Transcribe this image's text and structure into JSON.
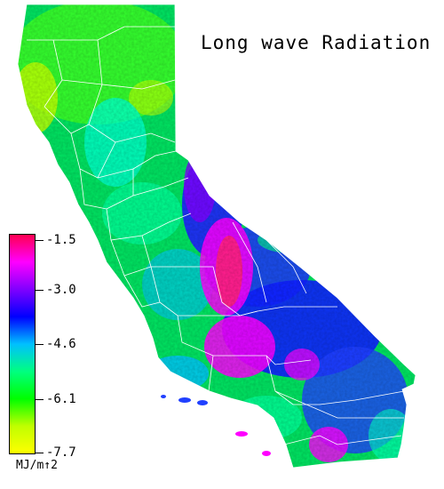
{
  "title": "Long wave Radiation",
  "legend": {
    "units": "MJ/m↑2",
    "ticks": [
      "-1.5",
      "-3.0",
      "-4.6",
      "-6.1",
      "-7.7"
    ],
    "gradient_stops": [
      "#ff0050",
      "#ff00ff",
      "#8000ff",
      "#0000ff",
      "#00c0ff",
      "#00ff80",
      "#00ff00",
      "#c0ff00",
      "#ffff00"
    ]
  },
  "colors": {
    "background": "#ffffff",
    "county_lines": "#ffffff",
    "high": "#ff0050",
    "mid_high": "#ff00ff",
    "mid": "#0000ff",
    "mid_low": "#00c0ff",
    "low": "#00ff80",
    "lowest": "#ffff00"
  }
}
